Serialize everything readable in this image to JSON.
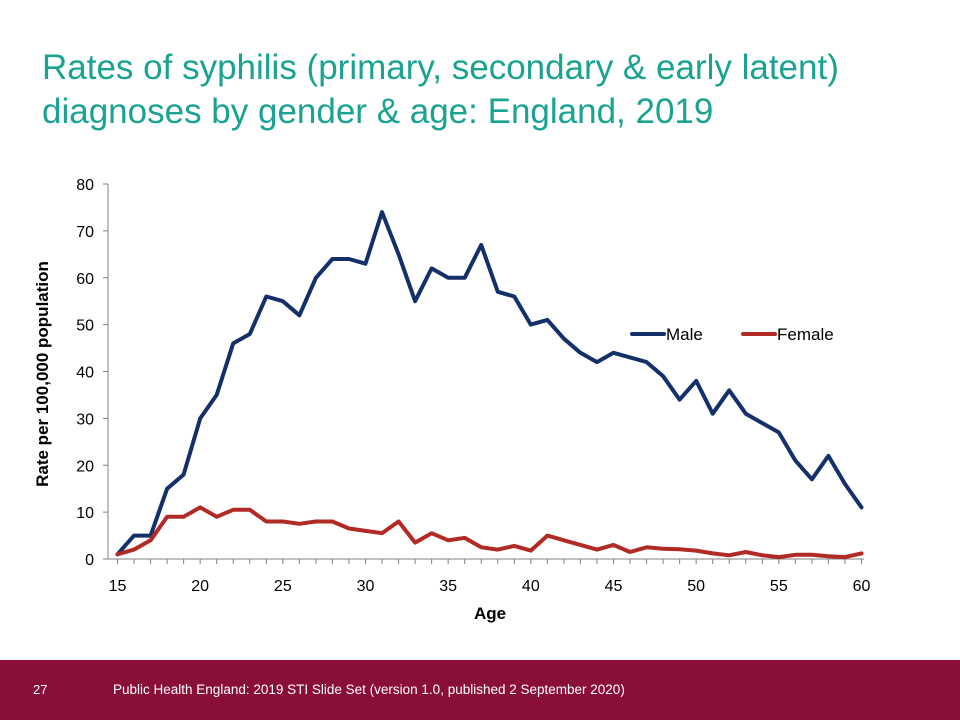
{
  "slide": {
    "title": "Rates of syphilis (primary, secondary & early latent) diagnoses by gender & age: England, 2019",
    "number": "27",
    "footer": "Public Health England: 2019 STI Slide Set (version 1.0, published 2 September 2020)"
  },
  "chart_data": {
    "type": "line",
    "xlabel": "Age",
    "ylabel": "Rate per 100,000 population",
    "xlim": [
      15,
      60
    ],
    "ylim": [
      0,
      80
    ],
    "x_ticks": [
      15,
      20,
      25,
      30,
      35,
      40,
      45,
      50,
      55,
      60
    ],
    "y_ticks": [
      0,
      10,
      20,
      30,
      40,
      50,
      60,
      70,
      80
    ],
    "grid": false,
    "legend_position": "right-middle",
    "x": [
      15,
      16,
      17,
      18,
      19,
      20,
      21,
      22,
      23,
      24,
      25,
      26,
      27,
      28,
      29,
      30,
      31,
      32,
      33,
      34,
      35,
      36,
      37,
      38,
      39,
      40,
      41,
      42,
      43,
      44,
      45,
      46,
      47,
      48,
      49,
      50,
      51,
      52,
      53,
      54,
      55,
      56,
      57,
      58,
      59,
      60
    ],
    "series": [
      {
        "name": "Male",
        "color": "#13306a",
        "values": [
          1,
          5,
          5,
          15,
          18,
          30,
          35,
          46,
          48,
          56,
          55,
          52,
          60,
          64,
          64,
          63,
          74,
          65,
          55,
          62,
          60,
          60,
          67,
          57,
          56,
          50,
          51,
          47,
          44,
          42,
          44,
          43,
          42,
          39,
          34,
          38,
          31,
          36,
          31,
          29,
          27,
          21,
          17,
          22,
          16,
          11
        ]
      },
      {
        "name": "Female",
        "color": "#b22a24",
        "values": [
          1,
          2,
          4,
          9,
          9,
          11,
          9,
          10.5,
          10.5,
          8,
          8,
          7.5,
          8,
          8,
          6.5,
          6,
          5.5,
          8,
          3.5,
          5.5,
          4,
          4.5,
          2.5,
          2,
          2.8,
          1.8,
          5,
          4,
          3,
          2,
          3,
          1.5,
          2.5,
          2.2,
          2.1,
          1.8,
          1.2,
          0.8,
          1.5,
          0.8,
          0.4,
          0.9,
          0.9,
          0.6,
          0.4,
          1.2
        ]
      }
    ]
  }
}
